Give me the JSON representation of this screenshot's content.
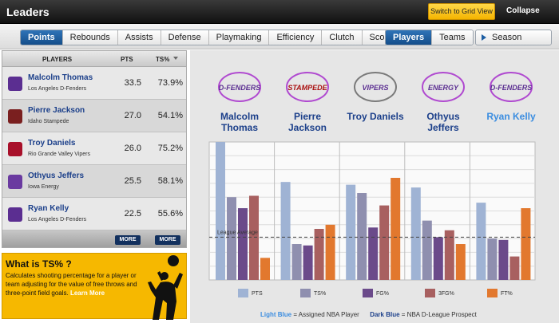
{
  "header": {
    "title": "Leaders",
    "grid_button": "Switch to Grid View",
    "collapse": "Collapse"
  },
  "tabs": {
    "stats": [
      "Points",
      "Rebounds",
      "Assists",
      "Defense",
      "Playmaking",
      "Efficiency",
      "Clutch",
      "Scoring"
    ],
    "active_stat": "Points",
    "view": [
      "Players",
      "Teams"
    ],
    "active_view": "Players",
    "season": "Season"
  },
  "table": {
    "headers": {
      "players": "PLAYERS",
      "pts": "PTS",
      "ts": "TS%"
    },
    "rows": [
      {
        "name": "Malcolm Thomas",
        "team": "Los Angeles D-Fenders",
        "pts": "33.5",
        "ts": "73.9%",
        "logo_color": "#5b2e91"
      },
      {
        "name": "Pierre Jackson",
        "team": "Idaho Stampede",
        "pts": "27.0",
        "ts": "54.1%",
        "logo_color": "#7a1f1f"
      },
      {
        "name": "Troy Daniels",
        "team": "Rio Grande Valley Vipers",
        "pts": "26.0",
        "ts": "75.2%",
        "logo_color": "#a8102a"
      },
      {
        "name": "Othyus Jeffers",
        "team": "Iowa Energy",
        "pts": "25.5",
        "ts": "58.1%",
        "logo_color": "#6a3aa0"
      },
      {
        "name": "Ryan Kelly",
        "team": "Los Angeles D-Fenders",
        "pts": "22.5",
        "ts": "55.6%",
        "logo_color": "#5b2e91"
      }
    ],
    "more_label": "MORE"
  },
  "promo": {
    "heading": "What is TS% ?",
    "body": "Calculates shooting percentage for a player or team adjusting for the value of free throws and three-point field goals.",
    "link": "Learn More"
  },
  "teams": [
    {
      "logo_text": "D-FENDERS",
      "name1": "Malcolm",
      "name2": "Thomas",
      "blue": "dark"
    },
    {
      "logo_text": "STAMPEDE",
      "name1": "Pierre",
      "name2": "Jackson",
      "blue": "dark"
    },
    {
      "logo_text": "VIPERS",
      "name1": "Troy Daniels",
      "name2": "",
      "blue": "dark"
    },
    {
      "logo_text": "ENERGY",
      "name1": "Othyus",
      "name2": "Jeffers",
      "blue": "dark"
    },
    {
      "logo_text": "D-FENDERS",
      "name1": "Ryan Kelly",
      "name2": "",
      "blue": "light"
    }
  ],
  "chart_data": {
    "type": "bar",
    "categories": [
      "Malcolm Thomas",
      "Pierre Jackson",
      "Troy Daniels",
      "Othyus Jeffers",
      "Ryan Kelly"
    ],
    "series": [
      {
        "name": "PTS",
        "color": "#9fb3d4",
        "values": [
          100,
          71,
          69,
          67,
          56
        ]
      },
      {
        "name": "TS%",
        "color": "#8f8faf",
        "values": [
          60,
          26,
          63,
          43,
          30
        ]
      },
      {
        "name": "FG%",
        "color": "#6b4a8a",
        "values": [
          52,
          25,
          38,
          31,
          29
        ]
      },
      {
        "name": "3FG%",
        "color": "#a86060",
        "values": [
          61,
          37,
          54,
          36,
          17
        ]
      },
      {
        "name": "FT%",
        "color": "#e2782e",
        "values": [
          16,
          40,
          74,
          26,
          52
        ]
      }
    ],
    "ylim": [
      0,
      100
    ],
    "reference_line": {
      "label": "League Average",
      "value": 31
    }
  },
  "footer": {
    "light": "Light Blue",
    "light_text": "= Assigned NBA Player",
    "dark": "Dark Blue",
    "dark_text": "= NBA D-League Prospect"
  }
}
